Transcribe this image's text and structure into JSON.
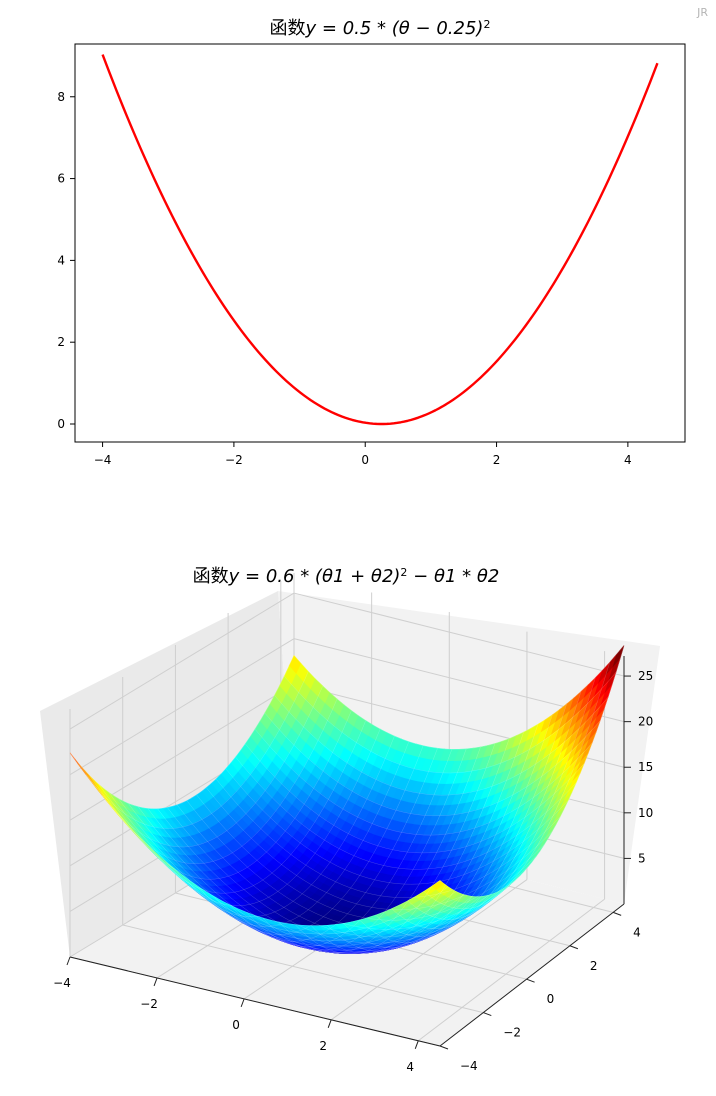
{
  "corner_mark": "JR",
  "chart_data": [
    {
      "type": "line",
      "title": "函数y = 0.5 * (θ − 0.25)²",
      "title_parts": {
        "prefix": "函数",
        "formula": "y = 0.5 * (θ − 0.25)",
        "sup": "2"
      },
      "xlabel": "",
      "ylabel": "",
      "xlim": [
        -4.42,
        4.87
      ],
      "ylim": [
        -0.44,
        9.29
      ],
      "xticks": [
        -4,
        -2,
        0,
        2,
        4
      ],
      "yticks": [
        0,
        2,
        4,
        6,
        8
      ],
      "x_range": [
        -4,
        4.45
      ],
      "function": {
        "a": 0.5,
        "h": 0.25
      },
      "series": [
        {
          "color": "#ff0000",
          "x": [
            -4,
            -3,
            -2,
            -1,
            0,
            0.25,
            1,
            2,
            3,
            4,
            4.45
          ],
          "y": [
            9.03,
            5.28,
            2.53,
            0.78,
            0.03,
            0,
            0.28,
            1.53,
            3.78,
            7.03,
            8.82
          ]
        }
      ],
      "grid": false
    },
    {
      "type": "surface",
      "title": "函数y = 0.6 * (θ1 + θ2)² − θ1 * θ2",
      "title_parts": {
        "prefix": "函数",
        "formula": "y = 0.6 * (θ1 + θ2)",
        "sup": "2",
        "suffix": " − θ1 * θ2"
      },
      "function": {
        "a": 0.6
      },
      "x_range": [
        -4,
        4.5
      ],
      "y_range": [
        -4,
        4.5
      ],
      "xticks": [
        -4,
        -2,
        0,
        2,
        4
      ],
      "yticks": [
        -4,
        -2,
        0,
        2,
        4
      ],
      "zticks": [
        5,
        10,
        15,
        20,
        25
      ],
      "z_range": [
        0,
        27.2
      ],
      "colormap": "jet",
      "grid": true
    }
  ]
}
